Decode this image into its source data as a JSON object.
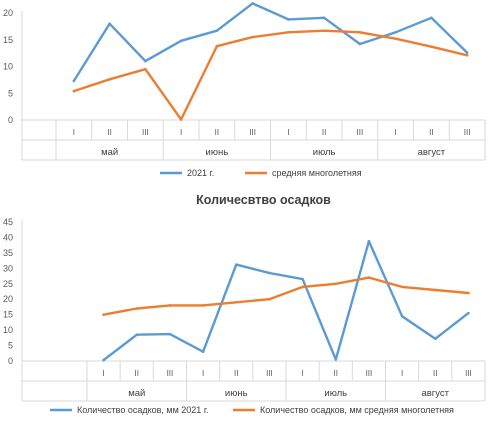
{
  "chart_data": [
    {
      "type": "line",
      "title": "",
      "ylim": [
        0,
        20
      ],
      "yticks": [
        "0",
        "5",
        "10",
        "15",
        "20"
      ],
      "decades": [
        "I",
        "II",
        "III",
        "I",
        "II",
        "III",
        "I",
        "II",
        "III",
        "I",
        "II",
        "III"
      ],
      "months": [
        "май",
        "июнь",
        "июль",
        "август"
      ],
      "grid": false,
      "legend_position": "bottom",
      "series": [
        {
          "name": "2021 г.",
          "color": "#5b9bd5",
          "values": [
            7.3,
            18.0,
            11.0,
            14.8,
            16.7,
            21.8,
            18.8,
            19.1,
            14.2,
            16.4,
            19.1,
            12.6
          ]
        },
        {
          "name": "средняя многолетняя",
          "color": "#ed7d31",
          "values": [
            5.4,
            7.6,
            9.5,
            0.1,
            13.8,
            15.5,
            16.4,
            16.7,
            16.4,
            15.2,
            13.7,
            12.1
          ]
        }
      ]
    },
    {
      "type": "line",
      "title": "Количесвтво осадков",
      "ylim": [
        0,
        45
      ],
      "yticks": [
        "0",
        "5",
        "10",
        "15",
        "20",
        "25",
        "30",
        "35",
        "40",
        "45"
      ],
      "decades": [
        "I",
        "II",
        "III",
        "I",
        "II",
        "III",
        "I",
        "II",
        "III",
        "I",
        "II",
        "III"
      ],
      "months": [
        "май",
        "июнь",
        "июль",
        "август"
      ],
      "grid": false,
      "legend_position": "bottom",
      "series": [
        {
          "name": "Количество осадков, мм 2021 г.",
          "color": "#5b9bd5",
          "values": [
            0.3,
            8.5,
            8.7,
            3.0,
            31.2,
            28.5,
            26.5,
            0.5,
            38.8,
            14.5,
            7.2,
            15.5
          ]
        },
        {
          "name": "Количество осадков, мм средняя многолетняя",
          "color": "#ed7d31",
          "values": [
            15.0,
            17.0,
            18.0,
            18.0,
            19.0,
            20.0,
            24.0,
            25.0,
            27.0,
            24.0,
            23.0,
            22.0
          ]
        }
      ]
    }
  ]
}
